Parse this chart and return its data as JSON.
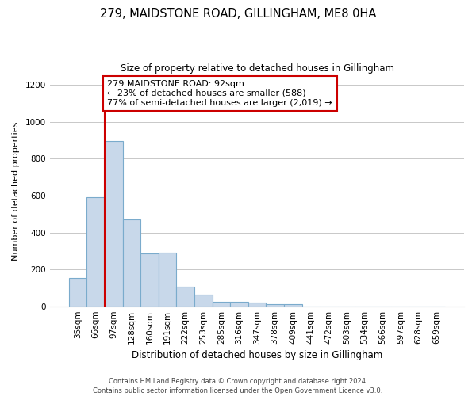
{
  "title": "279, MAIDSTONE ROAD, GILLINGHAM, ME8 0HA",
  "subtitle": "Size of property relative to detached houses in Gillingham",
  "xlabel": "Distribution of detached houses by size in Gillingham",
  "ylabel": "Number of detached properties",
  "bin_labels": [
    "35sqm",
    "66sqm",
    "97sqm",
    "128sqm",
    "160sqm",
    "191sqm",
    "222sqm",
    "253sqm",
    "285sqm",
    "316sqm",
    "347sqm",
    "378sqm",
    "409sqm",
    "441sqm",
    "472sqm",
    "503sqm",
    "534sqm",
    "566sqm",
    "597sqm",
    "628sqm",
    "659sqm"
  ],
  "bin_values": [
    155,
    590,
    895,
    470,
    285,
    290,
    105,
    65,
    25,
    25,
    20,
    10,
    10,
    0,
    0,
    0,
    0,
    0,
    0,
    0,
    0
  ],
  "bar_color": "#c8d8ea",
  "bar_edge_color": "#7aabcc",
  "vline_color": "#cc0000",
  "vline_x": 1.5,
  "annotation_line1": "279 MAIDSTONE ROAD: 92sqm",
  "annotation_line2": "← 23% of detached houses are smaller (588)",
  "annotation_line3": "77% of semi-detached houses are larger (2,019) →",
  "annotation_box_facecolor": "#ffffff",
  "annotation_box_edgecolor": "#cc0000",
  "ylim": [
    0,
    1250
  ],
  "yticks": [
    0,
    200,
    400,
    600,
    800,
    1000,
    1200
  ],
  "footer_line1": "Contains HM Land Registry data © Crown copyright and database right 2024.",
  "footer_line2": "Contains public sector information licensed under the Open Government Licence v3.0.",
  "background_color": "#ffffff",
  "grid_color": "#c8c8c8",
  "title_fontsize": 10.5,
  "subtitle_fontsize": 8.5,
  "xlabel_fontsize": 8.5,
  "ylabel_fontsize": 8,
  "tick_fontsize": 7.5,
  "annotation_fontsize": 8,
  "footer_fontsize": 6
}
